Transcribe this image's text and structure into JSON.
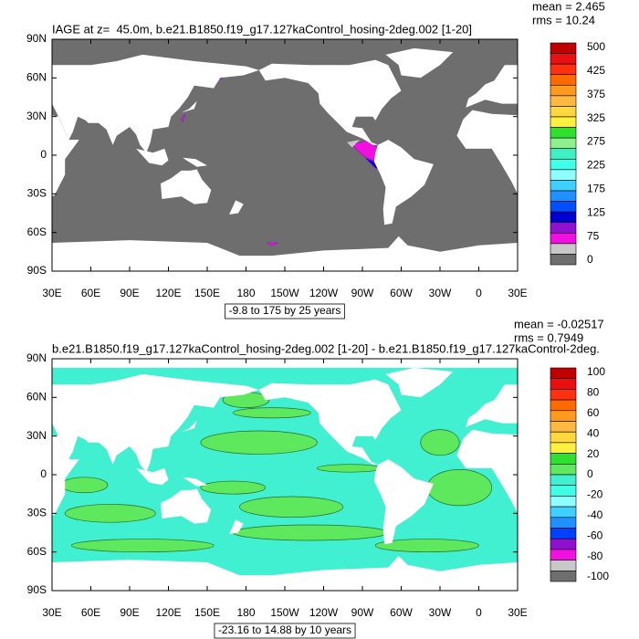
{
  "panels": [
    {
      "title": "IAGE at z=  45.0m, b.e21.B1850.f19_g17.127kaControl_hosing-2deg.002 [1-20]",
      "stats": [
        "mean = 2.465",
        "rms = 10.24"
      ],
      "y_labels": [
        "90N",
        "60N",
        "30N",
        "0",
        "30S",
        "60S",
        "90S"
      ],
      "x_labels": [
        "30E",
        "60E",
        "90E",
        "120E",
        "150E",
        "180",
        "150W",
        "120W",
        "90W",
        "60W",
        "30W",
        "0",
        "30E"
      ],
      "range_label": "-9.8 to 175 by 25 years",
      "colorbar_labels": [
        "500",
        "425",
        "375",
        "325",
        "275",
        "225",
        "175",
        "125",
        "75",
        "0"
      ],
      "colors": [
        "#c00000",
        "#e81010",
        "#ff3010",
        "#ff6a00",
        "#ff9a20",
        "#ffb840",
        "#ffd840",
        "#fff040",
        "#30e030",
        "#90f090",
        "#40f0c0",
        "#40ffe8",
        "#90ffff",
        "#40d0ff",
        "#2090ff",
        "#0050ff",
        "#0000d0",
        "#9010d0",
        "#f010e0",
        "#c8c8c8",
        "#6e6e6e"
      ]
    },
    {
      "title": "b.e21.B1850.f19_g17.127kaControl_hosing-2deg.002 [1-20] - b.e21.B1850.f19_g17.127kaControl-2deg.",
      "stats": [
        "mean = -0.02517",
        "rms = 0.7949"
      ],
      "y_labels": [
        "90N",
        "60N",
        "30N",
        "0",
        "30S",
        "60S",
        "90S"
      ],
      "x_labels": [
        "30E",
        "60E",
        "90E",
        "120E",
        "150E",
        "180",
        "150W",
        "120W",
        "90W",
        "60W",
        "30W",
        "0",
        "30E"
      ],
      "range_label": "-23.16 to 14.88 by 10 years",
      "colorbar_labels": [
        "100",
        "80",
        "60",
        "40",
        "20",
        "0",
        "-20",
        "-40",
        "-60",
        "-80",
        "-100"
      ],
      "colors": [
        "#c00000",
        "#e81010",
        "#ff3010",
        "#ff6a00",
        "#ff9a20",
        "#ffb840",
        "#ffd840",
        "#fff040",
        "#30e030",
        "#60e860",
        "#40f0d0",
        "#40ffe8",
        "#90ffff",
        "#40d0ff",
        "#2090ff",
        "#0040ff",
        "#9010d0",
        "#f010e0",
        "#c8c8c8",
        "#6e6e6e"
      ]
    }
  ]
}
